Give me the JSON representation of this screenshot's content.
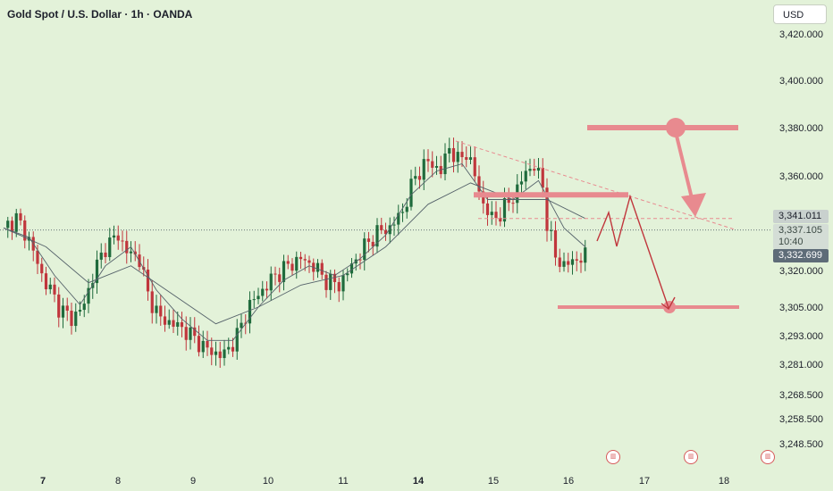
{
  "header": {
    "title": "Gold Spot / U.S. Dollar · 1h · OANDA",
    "currency_label": "USD"
  },
  "price_tags": {
    "last": "3,341.011",
    "current": "3,337.105",
    "countdown": "10:40",
    "prev": "3,332.699"
  },
  "colors": {
    "background": "#e3f2d9",
    "candle_up": "#1f6b3c",
    "candle_down": "#c0363c",
    "annotation": "#e88a8f",
    "ma_line": "#55626a"
  },
  "chart_data": {
    "type": "candlestick",
    "title": "Gold Spot / U.S. Dollar · 1h · OANDA",
    "ylim": [
      3248.5,
      3420.0
    ],
    "y_ticks": [
      "3,420.000",
      "3,400.000",
      "3,380.000",
      "3,360.000",
      "3,340.000",
      "3,320.000",
      "3,305.000",
      "3,293.000",
      "3,281.000",
      "3,268.500",
      "3,258.500",
      "3,248.500"
    ],
    "x_ticks": [
      "7",
      "8",
      "9",
      "10",
      "11",
      "14",
      "15",
      "16",
      "17",
      "18"
    ],
    "x_ticks_bold": [
      "7",
      "14"
    ],
    "close_path": [
      [
        0,
        3338
      ],
      [
        3,
        3342
      ],
      [
        6,
        3333
      ],
      [
        9,
        3318
      ],
      [
        11,
        3312
      ],
      [
        13,
        3305
      ],
      [
        16,
        3300
      ],
      [
        19,
        3306
      ],
      [
        21,
        3318
      ],
      [
        24,
        3330
      ],
      [
        27,
        3335
      ],
      [
        29,
        3328
      ],
      [
        32,
        3325
      ],
      [
        34,
        3310
      ],
      [
        37,
        3300
      ],
      [
        40,
        3298
      ],
      [
        43,
        3295
      ],
      [
        46,
        3290
      ],
      [
        49,
        3286
      ],
      [
        52,
        3285
      ],
      [
        55,
        3293
      ],
      [
        58,
        3306
      ],
      [
        61,
        3312
      ],
      [
        64,
        3318
      ],
      [
        67,
        3322
      ],
      [
        70,
        3325
      ],
      [
        73,
        3322
      ],
      [
        76,
        3316
      ],
      [
        79,
        3314
      ],
      [
        82,
        3322
      ],
      [
        85,
        3330
      ],
      [
        88,
        3336
      ],
      [
        91,
        3338
      ],
      [
        94,
        3345
      ],
      [
        97,
        3360
      ],
      [
        100,
        3366
      ],
      [
        103,
        3362
      ],
      [
        105,
        3372
      ],
      [
        107,
        3366
      ],
      [
        109,
        3370
      ],
      [
        111,
        3360
      ],
      [
        113,
        3348
      ],
      [
        115,
        3342
      ],
      [
        117,
        3344
      ],
      [
        119,
        3349
      ],
      [
        121,
        3354
      ],
      [
        123,
        3362
      ],
      [
        125,
        3364
      ],
      [
        127,
        3356
      ],
      [
        128,
        3340
      ],
      [
        130,
        3326
      ],
      [
        132,
        3322
      ],
      [
        134,
        3324
      ],
      [
        137,
        3326
      ]
    ],
    "ma_fast": [
      [
        0,
        3338
      ],
      [
        6,
        3334
      ],
      [
        12,
        3318
      ],
      [
        18,
        3306
      ],
      [
        24,
        3322
      ],
      [
        30,
        3330
      ],
      [
        36,
        3312
      ],
      [
        42,
        3300
      ],
      [
        48,
        3291
      ],
      [
        54,
        3291
      ],
      [
        60,
        3305
      ],
      [
        66,
        3316
      ],
      [
        72,
        3322
      ],
      [
        78,
        3318
      ],
      [
        84,
        3325
      ],
      [
        90,
        3335
      ],
      [
        96,
        3352
      ],
      [
        102,
        3362
      ],
      [
        108,
        3365
      ],
      [
        114,
        3350
      ],
      [
        120,
        3350
      ],
      [
        126,
        3358
      ],
      [
        132,
        3338
      ],
      [
        137,
        3330
      ]
    ],
    "ma_slow": [
      [
        0,
        3338
      ],
      [
        10,
        3330
      ],
      [
        20,
        3315
      ],
      [
        30,
        3322
      ],
      [
        40,
        3310
      ],
      [
        50,
        3298
      ],
      [
        60,
        3305
      ],
      [
        70,
        3314
      ],
      [
        80,
        3318
      ],
      [
        90,
        3330
      ],
      [
        100,
        3348
      ],
      [
        110,
        3357
      ],
      [
        120,
        3350
      ],
      [
        128,
        3350
      ],
      [
        137,
        3342
      ]
    ],
    "annotations": {
      "resistance_top": 3380.0,
      "resistance_mid": 3352.0,
      "support_target": 3305.0,
      "dashed_level": 3342.0
    }
  },
  "events": [
    {
      "label": "▥"
    },
    {
      "label": "▥"
    },
    {
      "label": "▥"
    }
  ]
}
